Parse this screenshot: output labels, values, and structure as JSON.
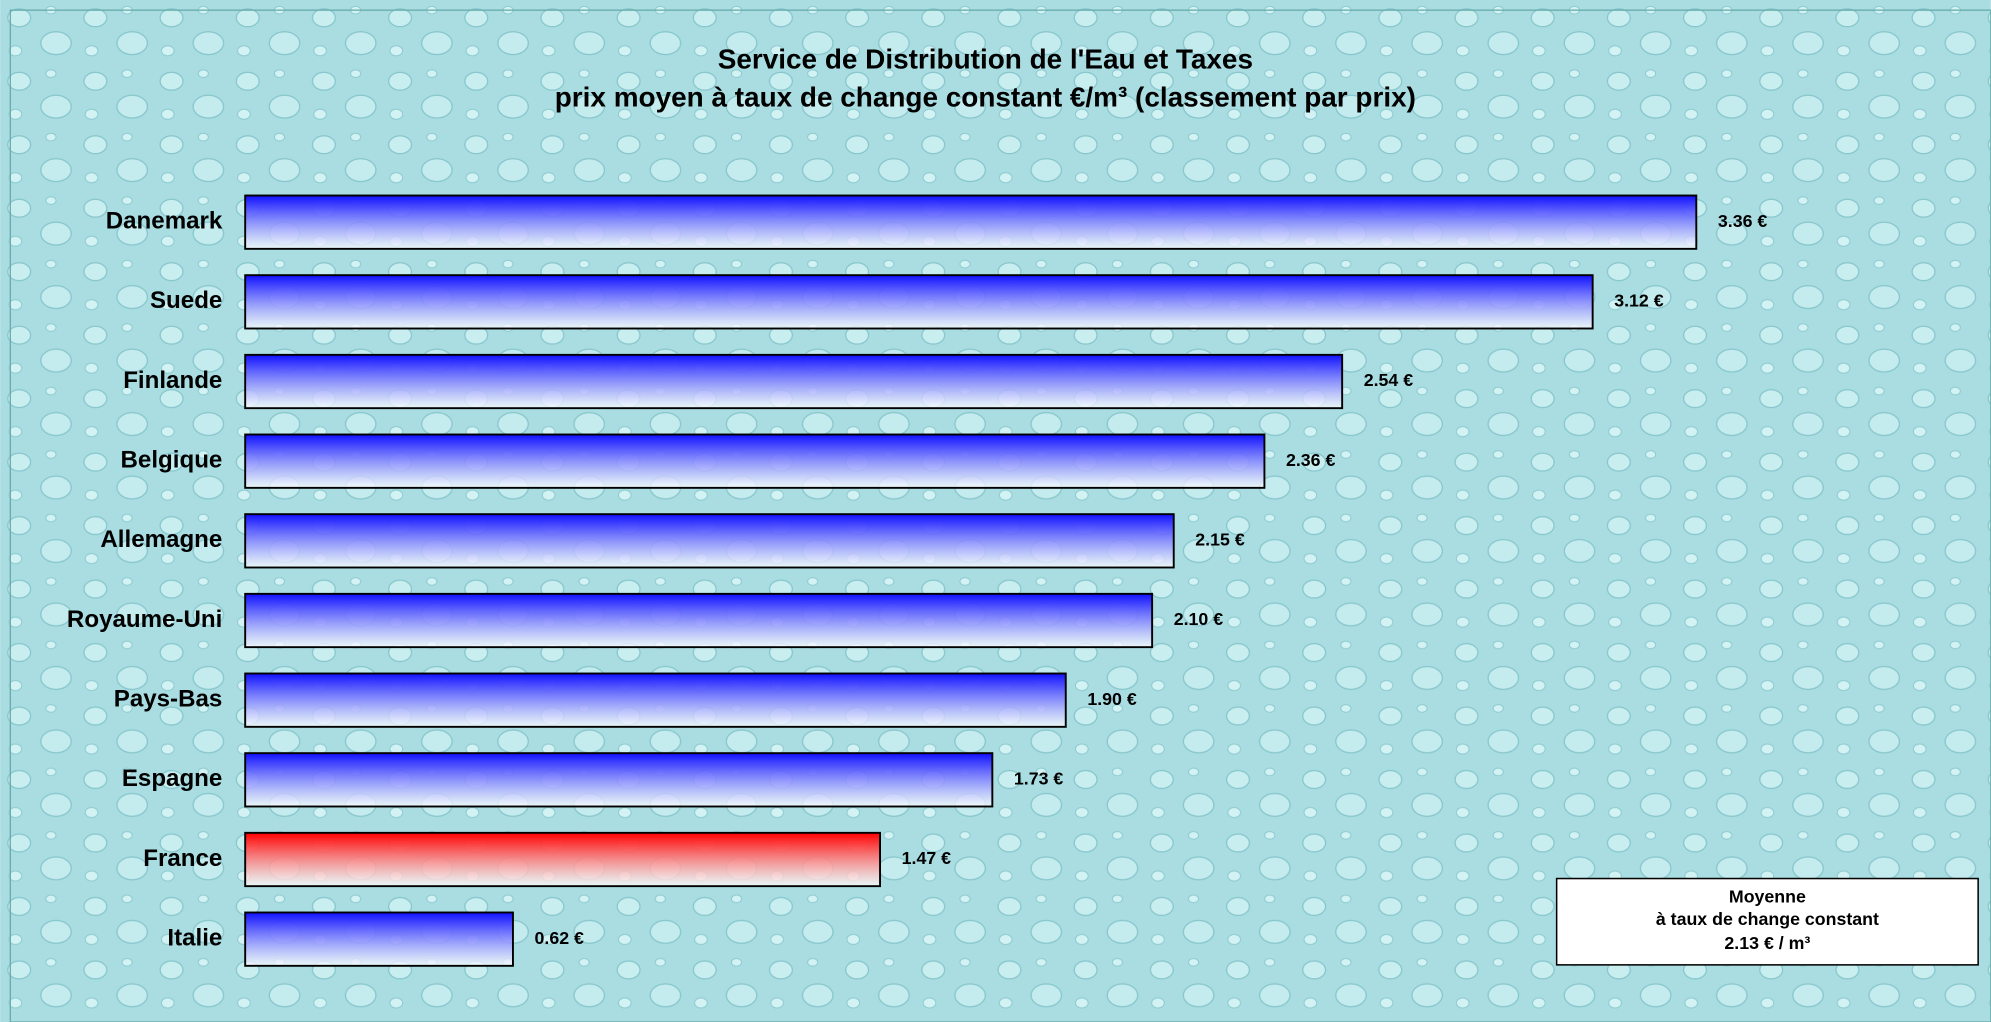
{
  "chart_data": {
    "type": "bar",
    "orientation": "horizontal",
    "title": "Service de Distribution de l'Eau et Taxes",
    "subtitle": "prix moyen à taux de change constant €/m³ (classement par prix)",
    "categories": [
      "Danemark",
      "Suede",
      "Finlande",
      "Belgique",
      "Allemagne",
      "Royaume-Uni",
      "Pays-Bas",
      "Espagne",
      "France",
      "Italie"
    ],
    "values": [
      3.36,
      3.12,
      2.54,
      2.36,
      2.15,
      2.1,
      1.9,
      1.73,
      1.47,
      0.62
    ],
    "value_labels": [
      "3.36 €",
      "3.12 €",
      "2.54 €",
      "2.36 €",
      "2.15 €",
      "2.10 €",
      "1.90 €",
      "1.73 €",
      "1.47 €",
      "0.62 €"
    ],
    "colors": [
      "#1010ff",
      "#1010ff",
      "#1010ff",
      "#1010ff",
      "#1010ff",
      "#1010ff",
      "#1010ff",
      "#1010ff",
      "#ff0000",
      "#1010ff"
    ],
    "annotation": [
      "Moyenne",
      "à taux de change constant",
      "2.13 € / m³"
    ]
  }
}
